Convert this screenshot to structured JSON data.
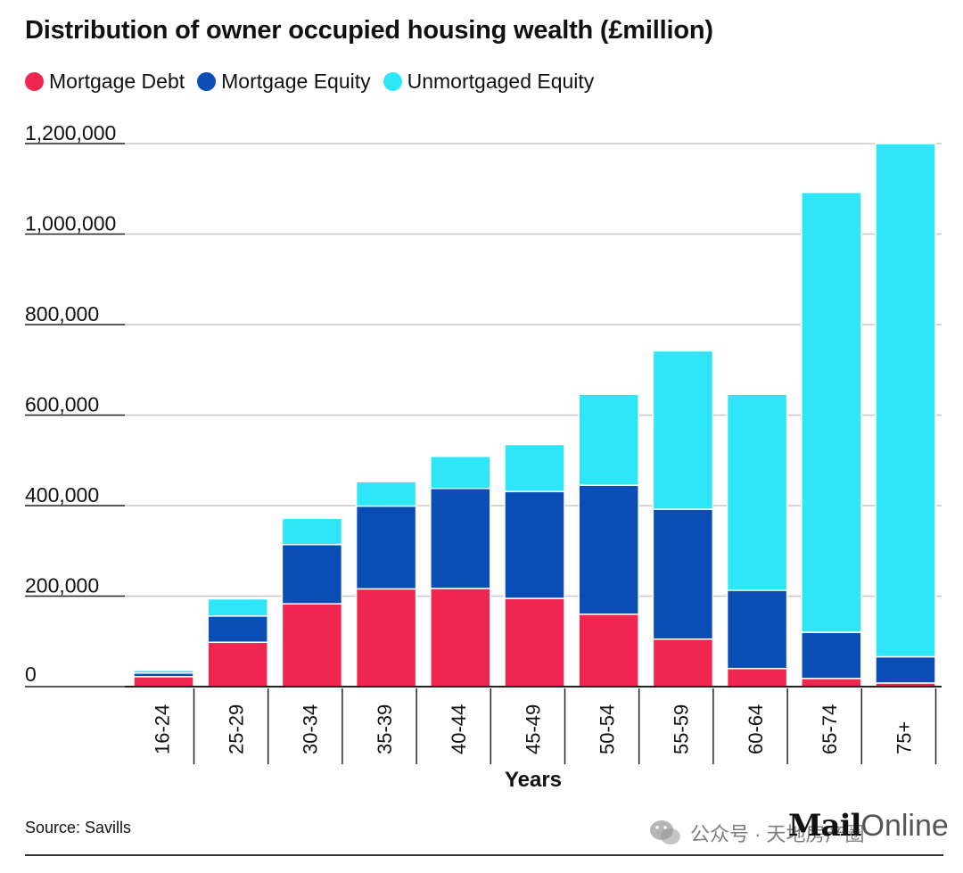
{
  "chart_data": {
    "type": "bar",
    "stacked": true,
    "title": "Distribution of owner occupied housing wealth (£million)",
    "xlabel": "Years",
    "ylabel": "",
    "ylim": [
      0,
      1200000
    ],
    "yticks": [
      0,
      200000,
      400000,
      600000,
      800000,
      1000000,
      1200000
    ],
    "ytick_labels": [
      "0",
      "200,000",
      "400,000",
      "600,000",
      "800,000",
      "1,000,000",
      "1,200,000"
    ],
    "grid": true,
    "legend_position": "top-left",
    "categories": [
      "16-24",
      "25-29",
      "30-34",
      "35-39",
      "40-44",
      "45-49",
      "50-54",
      "55-59",
      "60-64",
      "65-74",
      "75+"
    ],
    "series": [
      {
        "name": "Mortgage Debt",
        "color": "#ee2650",
        "values": [
          22000,
          98000,
          183000,
          216000,
          217000,
          195000,
          160000,
          105000,
          40000,
          18000,
          8000
        ]
      },
      {
        "name": "Mortgage Equity",
        "color": "#0a4eb5",
        "values": [
          8000,
          58000,
          131000,
          183000,
          221000,
          236000,
          285000,
          287000,
          173000,
          102000,
          58000
        ]
      },
      {
        "name": "Unmortgaged Equity",
        "color": "#2ee6f8",
        "values": [
          6000,
          38000,
          58000,
          54000,
          71000,
          104000,
          201000,
          350000,
          433000,
          972000,
          1134000
        ]
      }
    ]
  },
  "footer": {
    "source": "Source: Savills",
    "brand_bold": "Mail",
    "brand_light": "Online",
    "watermark": "公众号 · 天地房产圈",
    "watermark_icon": "wechat-icon"
  }
}
